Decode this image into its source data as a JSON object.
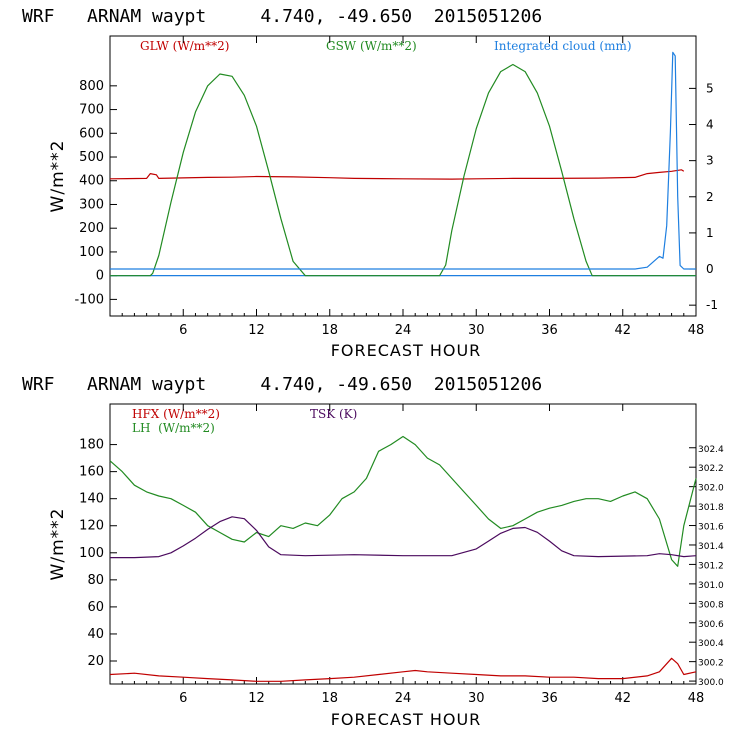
{
  "chart_data": [
    {
      "type": "line",
      "title": "WRF   ARNAM waypt     4.740, -49.650  2015051206",
      "xlabel": "FORECAST HOUR",
      "ylabel": "W/m**2",
      "xlim": [
        0,
        48
      ],
      "ylim": [
        -170,
        1010
      ],
      "x_ticks": [
        6,
        12,
        18,
        24,
        30,
        36,
        42,
        48
      ],
      "y_ticks": [
        -100,
        0,
        100,
        200,
        300,
        400,
        500,
        600,
        700,
        800
      ],
      "y2_ticks": [
        -1,
        0,
        1,
        2,
        3,
        4,
        5
      ],
      "y2lim": [
        -1.3,
        6.45
      ],
      "series": [
        {
          "name": "GLW (W/m**2)",
          "color": "#c00000",
          "axis": "left",
          "x": [
            0,
            3,
            3.3,
            3.8,
            4,
            6,
            8,
            10,
            12,
            15,
            18,
            20,
            24,
            28,
            30,
            33,
            36,
            40,
            43,
            44,
            45,
            46,
            46.8,
            47
          ],
          "y": [
            408,
            410,
            430,
            425,
            410,
            412,
            414,
            415,
            418,
            416,
            413,
            410,
            408,
            407,
            408,
            410,
            410,
            411,
            414,
            430,
            435,
            440,
            446,
            440
          ]
        },
        {
          "name": "GSW (W/m**2)",
          "color": "#228b22",
          "axis": "left",
          "x": [
            0,
            3.3,
            3.5,
            4,
            5,
            6,
            7,
            8,
            9,
            10,
            11,
            12,
            13,
            14,
            15,
            16,
            20,
            24,
            27,
            27.5,
            28,
            29,
            30,
            31,
            32,
            33,
            34,
            35,
            36,
            37,
            38,
            39,
            39.5,
            40,
            44,
            48
          ],
          "y": [
            0,
            0,
            10,
            85,
            310,
            520,
            690,
            800,
            850,
            840,
            760,
            630,
            440,
            240,
            60,
            0,
            0,
            0,
            0,
            45,
            190,
            420,
            620,
            770,
            860,
            890,
            860,
            770,
            630,
            440,
            240,
            60,
            0,
            0,
            0,
            0
          ]
        },
        {
          "name": "Integrated cloud (mm)",
          "color": "#1e7fe0",
          "axis": "right",
          "x": [
            0,
            43,
            44,
            44.5,
            45,
            45.3,
            45.6,
            45.9,
            46.1,
            46.3,
            46.5,
            46.7,
            47,
            48
          ],
          "y": [
            0,
            0,
            0.05,
            0.2,
            0.35,
            0.3,
            1.2,
            3.8,
            6.0,
            5.9,
            2.0,
            0.1,
            0,
            0
          ]
        }
      ],
      "legend": [
        "GLW (W/m**2)",
        "GSW (W/m**2)",
        "Integrated cloud (mm)"
      ]
    },
    {
      "type": "line",
      "title": "WRF   ARNAM waypt     4.740, -49.650  2015051206",
      "xlabel": "FORECAST HOUR",
      "ylabel": "W/m**2",
      "xlim": [
        0,
        48
      ],
      "ylim": [
        3,
        210
      ],
      "x_ticks": [
        6,
        12,
        18,
        24,
        30,
        36,
        42,
        48
      ],
      "y_ticks": [
        20,
        40,
        60,
        80,
        100,
        120,
        140,
        160,
        180
      ],
      "y2_ticks": [
        "300.0",
        "300.2",
        "300.4",
        "300.6",
        "300.8",
        "301.0",
        "301.2",
        "301.4",
        "301.6",
        "301.8",
        "302.0",
        "302.2",
        "302.4"
      ],
      "y2lim": [
        299.97,
        302.85
      ],
      "series": [
        {
          "name": "HFX (W/m**2)",
          "color": "#c00000",
          "axis": "left",
          "x": [
            0,
            2,
            4,
            6,
            8,
            10,
            12,
            14,
            16,
            18,
            20,
            22,
            24,
            25,
            26,
            28,
            30,
            32,
            34,
            36,
            38,
            40,
            42,
            44,
            45,
            46,
            46.5,
            47,
            48
          ],
          "y": [
            10,
            11,
            9,
            8,
            7,
            6,
            5,
            5,
            6,
            7,
            8,
            10,
            12,
            13,
            12,
            11,
            10,
            9,
            9,
            8,
            8,
            7,
            7,
            9,
            12,
            22,
            18,
            10,
            12
          ]
        },
        {
          "name": "LH  (W/m**2)",
          "color": "#228b22",
          "axis": "left",
          "x": [
            0,
            1,
            2,
            3,
            4,
            5,
            6,
            7,
            8,
            9,
            10,
            11,
            12,
            13,
            14,
            15,
            16,
            17,
            18,
            19,
            20,
            21,
            22,
            23,
            24,
            25,
            26,
            27,
            28,
            29,
            30,
            31,
            32,
            33,
            34,
            35,
            36,
            37,
            38,
            39,
            40,
            41,
            42,
            43,
            44,
            45,
            46,
            46.5,
            47,
            48
          ],
          "y": [
            168,
            160,
            150,
            145,
            142,
            140,
            135,
            130,
            120,
            115,
            110,
            108,
            115,
            112,
            120,
            118,
            122,
            120,
            128,
            140,
            145,
            155,
            175,
            180,
            186,
            180,
            170,
            165,
            155,
            145,
            135,
            125,
            118,
            120,
            125,
            130,
            133,
            135,
            138,
            140,
            140,
            138,
            142,
            145,
            140,
            125,
            95,
            90,
            120,
            155
          ]
        },
        {
          "name": "TSK (K)",
          "color": "#4b0a5e",
          "axis": "right",
          "x": [
            0,
            2,
            4,
            5,
            6,
            7,
            8,
            9,
            10,
            11,
            12,
            13,
            14,
            16,
            20,
            24,
            28,
            30,
            31,
            32,
            33,
            34,
            35,
            36,
            37,
            38,
            40,
            44,
            45,
            46,
            47,
            48
          ],
          "y": [
            301.27,
            301.27,
            301.28,
            301.32,
            301.39,
            301.47,
            301.56,
            301.64,
            301.69,
            301.67,
            301.55,
            301.38,
            301.3,
            301.29,
            301.3,
            301.29,
            301.29,
            301.36,
            301.44,
            301.52,
            301.57,
            301.58,
            301.53,
            301.44,
            301.34,
            301.29,
            301.28,
            301.29,
            301.31,
            301.3,
            301.28,
            301.29
          ]
        }
      ],
      "legend": [
        "HFX (W/m**2)",
        "LH  (W/m**2)",
        "TSK (K)"
      ]
    }
  ]
}
